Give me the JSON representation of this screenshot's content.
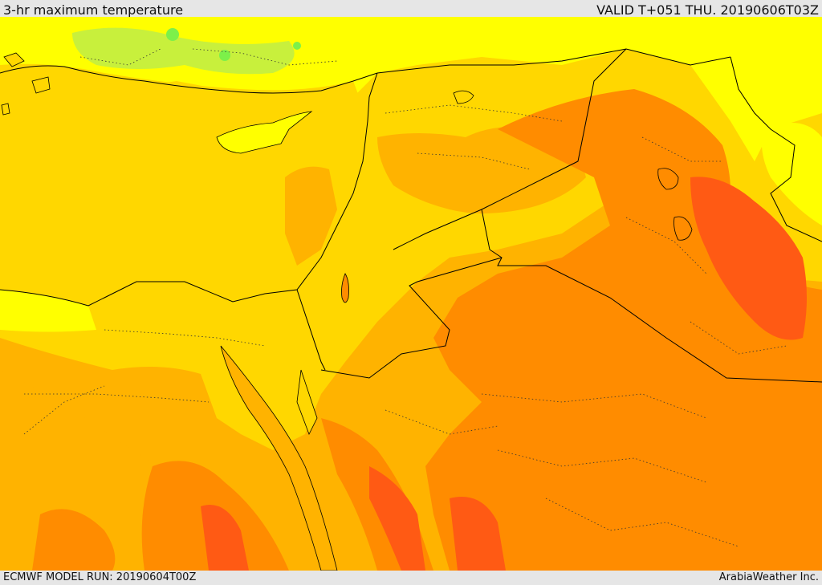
{
  "header": {
    "title": "3-hr maximum temperature",
    "valid_time": "VALID T+051 THU. 20190606T03Z"
  },
  "footer": {
    "model_run": "ECMWF MODEL RUN: 20190604T00Z",
    "credit": "ArabiaWeather Inc."
  },
  "map": {
    "region": "Eastern Mediterranean and Middle East",
    "field": "3-hr maximum temperature",
    "colors": {
      "cool_green": "#7cf04a",
      "light_green": "#c8f03c",
      "yellow": "#ffff00",
      "yellow_orange": "#ffd700",
      "light_orange": "#ffb300",
      "orange": "#ff8c00",
      "red_orange": "#ff5a14",
      "border_line": "#000000"
    }
  }
}
